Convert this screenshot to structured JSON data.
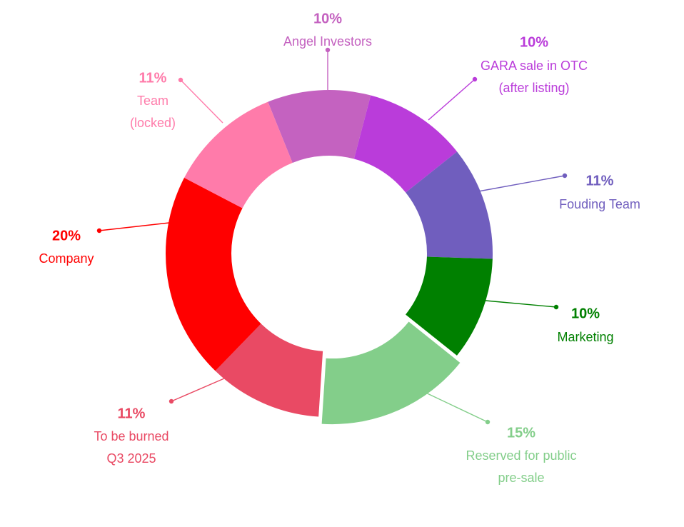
{
  "chart_data": {
    "type": "pie",
    "subtype": "donut",
    "slices": [
      {
        "label_lines": [
          "Angel Investors"
        ],
        "value": 10,
        "value_label": "10%",
        "color": "#C462C0"
      },
      {
        "label_lines": [
          "GARA sale in OTC",
          "(after listing)"
        ],
        "value": 10,
        "value_label": "10%",
        "color": "#BA3CDA"
      },
      {
        "label_lines": [
          "Fouding Team"
        ],
        "value": 11,
        "value_label": "11%",
        "color": "#705EBE"
      },
      {
        "label_lines": [
          "Marketing"
        ],
        "value": 10,
        "value_label": "10%",
        "color": "#008000"
      },
      {
        "label_lines": [
          "Reserved for public",
          "pre-sale"
        ],
        "value": 15,
        "value_label": "15%",
        "color": "#83CE8A",
        "exploded": true
      },
      {
        "label_lines": [
          "To be burned",
          "Q3 2025"
        ],
        "value": 11,
        "value_label": "11%",
        "color": "#E94A64"
      },
      {
        "label_lines": [
          "Company"
        ],
        "value": 20,
        "value_label": "20%",
        "color": "#FF0000"
      },
      {
        "label_lines": [
          "Team",
          "(locked)"
        ],
        "value": 11,
        "value_label": "11%",
        "color": "#FF7BAA"
      }
    ]
  }
}
